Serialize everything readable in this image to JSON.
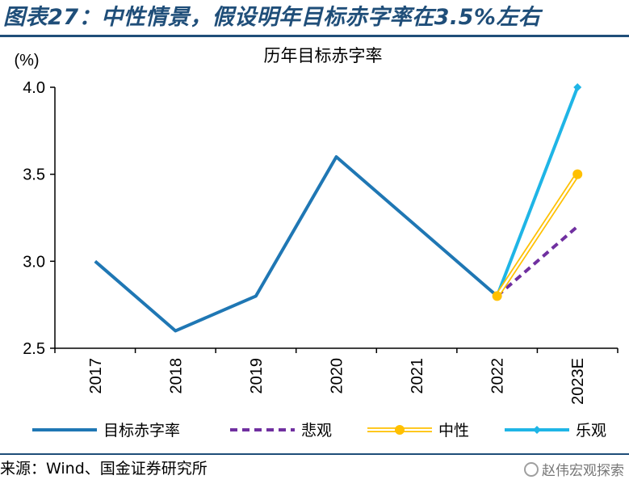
{
  "figure": {
    "title": "图表27：中性情景，假设明年目标赤字率在3.5%左右",
    "source": "来源：Wind、国金证券研究所",
    "watermark": "赵伟宏观探索"
  },
  "chart_data": {
    "type": "line",
    "title": "历年目标赤字率",
    "ylabel": "(%)",
    "xlabel": "",
    "ylim": [
      2.5,
      4.0
    ],
    "yticks": [
      2.5,
      3.0,
      3.5,
      4.0
    ],
    "ytick_labels": [
      "2.5",
      "3.0",
      "3.5",
      "4.0"
    ],
    "categories": [
      "2017",
      "2018",
      "2019",
      "2020",
      "2021",
      "2022",
      "2023E"
    ],
    "grid": false,
    "legend_position": "bottom",
    "series": [
      {
        "name": "目标赤字率",
        "color": "#1f77b4",
        "style": "solid",
        "marker": "none",
        "values": [
          3.0,
          2.6,
          2.8,
          3.6,
          3.2,
          2.8,
          null
        ]
      },
      {
        "name": "悲观",
        "color": "#7030a0",
        "style": "dashed",
        "marker": "none",
        "values": [
          null,
          null,
          null,
          null,
          null,
          2.8,
          3.2
        ]
      },
      {
        "name": "中性",
        "color": "#ffc000",
        "style": "double",
        "marker": "circle",
        "values": [
          null,
          null,
          null,
          null,
          null,
          2.8,
          3.5
        ]
      },
      {
        "name": "乐观",
        "color": "#1fb5e6",
        "style": "solid",
        "marker": "diamond",
        "values": [
          null,
          null,
          null,
          null,
          null,
          2.8,
          4.0
        ]
      }
    ]
  }
}
